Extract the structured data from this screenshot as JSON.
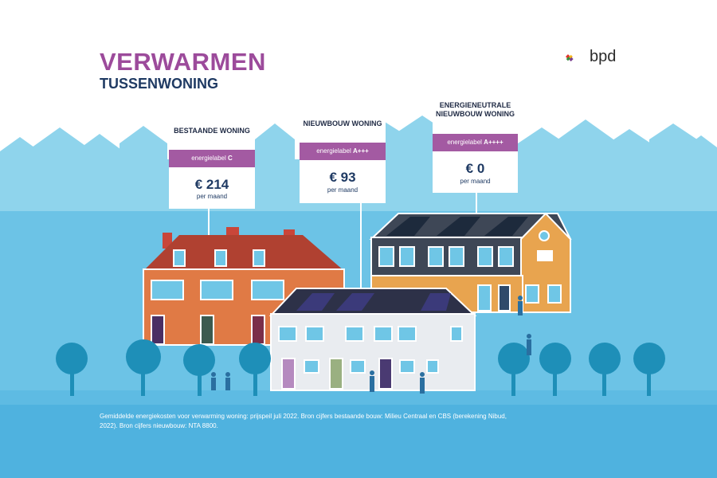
{
  "title": "VERWARMEN",
  "subtitle": "TUSSENWONING",
  "logo": {
    "text": "bpd"
  },
  "colors": {
    "sky": "#ffffff",
    "skyline": "#7ecde8",
    "ground": "#63bfe4",
    "footer": "#4fb2df",
    "accent": "#a35aa2",
    "navy": "#1f3a63"
  },
  "cards": [
    {
      "heading": "BESTAANDE WONING",
      "label_prefix": "energielabel",
      "label_value": "C",
      "price": "€ 214",
      "per": "per maand"
    },
    {
      "heading": "NIEUWBOUW WONING",
      "label_prefix": "energielabel",
      "label_value": "A+++",
      "price": "€ 93",
      "per": "per maand"
    },
    {
      "heading": "ENERGIENEUTRALE NIEUWBOUW WONING",
      "label_prefix": "energielabel",
      "label_value": "A++++",
      "price": "€ 0",
      "per": "per maand"
    }
  ],
  "footnote": "Gemiddelde energiekosten voor verwarming woning: prijspeil juli 2022. Bron cijfers bestaande bouw: Milieu Centraal en CBS (berekening Nibud, 2022). Bron cijfers nieuwbouw: NTA 8800."
}
